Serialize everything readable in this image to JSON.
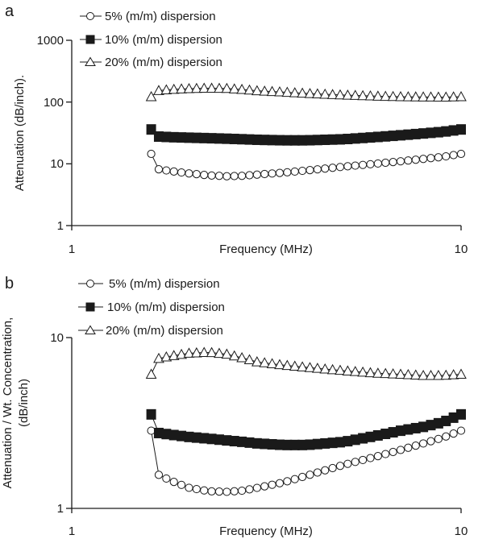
{
  "chart_data": [
    {
      "panel_label": "a",
      "type": "scatter",
      "xlabel": "Frequency (MHz)",
      "ylabel": "Attenuation (dB/inch).",
      "x_scale": "log",
      "y_scale": "log",
      "xlim": [
        1,
        10
      ],
      "ylim": [
        1,
        1000
      ],
      "x_ticks": [
        "1",
        "10"
      ],
      "y_ticks": [
        "1",
        "10",
        "100",
        "1000"
      ],
      "legend_position": "top-left",
      "series": [
        {
          "name": "5% (m/m) dispersion",
          "marker": "open-circle",
          "x": [
            1.6,
            1.8,
            2.0,
            2.25,
            2.5,
            2.75,
            3.0,
            3.5,
            4.0,
            5.0,
            6.0,
            7.0,
            8.0,
            9.0,
            10.0
          ],
          "y": [
            8.5,
            7.6,
            7.0,
            6.5,
            6.3,
            6.4,
            6.7,
            7.2,
            7.8,
            9.0,
            10.0,
            11.0,
            12.0,
            13.0,
            14.5
          ]
        },
        {
          "name": "10% (m/m) dispersion",
          "marker": "filled-square",
          "x": [
            1.6,
            1.8,
            2.0,
            2.25,
            2.5,
            2.75,
            3.0,
            3.5,
            4.0,
            5.0,
            6.0,
            7.0,
            8.0,
            9.0,
            10.0
          ],
          "y": [
            28,
            27,
            26.5,
            26,
            25.5,
            25,
            24.5,
            24,
            24,
            25,
            27,
            29,
            31,
            33,
            36
          ]
        },
        {
          "name": "20% (m/m) dispersion",
          "marker": "open-triangle",
          "x": [
            1.6,
            1.8,
            2.0,
            2.25,
            2.5,
            2.75,
            3.0,
            3.5,
            4.0,
            5.0,
            6.0,
            7.0,
            8.0,
            9.0,
            10.0
          ],
          "y": [
            150,
            160,
            165,
            168,
            166,
            160,
            152,
            145,
            138,
            130,
            125,
            122,
            121,
            120,
            122
          ]
        }
      ]
    },
    {
      "panel_label": "b",
      "type": "scatter",
      "xlabel": "Frequency (MHz)",
      "ylabel": "Attenuation / Wt. Concentration, (dB/inch)",
      "x_scale": "log",
      "y_scale": "log",
      "xlim": [
        1,
        10
      ],
      "ylim": [
        1,
        10
      ],
      "x_ticks": [
        "1",
        "10"
      ],
      "y_ticks": [
        "1",
        "10"
      ],
      "legend_position": "top-left",
      "series": [
        {
          "name": "5% (m/m) dispersion",
          "marker": "open-circle",
          "x": [
            1.6,
            1.8,
            2.0,
            2.25,
            2.5,
            2.75,
            3.0,
            3.5,
            4.0,
            5.0,
            6.0,
            7.0,
            8.0,
            9.0,
            10.0
          ],
          "y": [
            1.65,
            1.45,
            1.32,
            1.26,
            1.25,
            1.27,
            1.32,
            1.42,
            1.55,
            1.8,
            2.0,
            2.2,
            2.4,
            2.6,
            2.85
          ]
        },
        {
          "name": "10% (m/m) dispersion",
          "marker": "filled-square",
          "x": [
            1.6,
            1.8,
            2.0,
            2.25,
            2.5,
            2.75,
            3.0,
            3.5,
            4.0,
            5.0,
            6.0,
            7.0,
            8.0,
            9.0,
            10.0
          ],
          "y": [
            2.8,
            2.7,
            2.62,
            2.56,
            2.5,
            2.45,
            2.4,
            2.35,
            2.35,
            2.45,
            2.65,
            2.85,
            3.0,
            3.2,
            3.55
          ]
        },
        {
          "name": "20% (m/m) dispersion",
          "marker": "open-triangle",
          "x": [
            1.6,
            1.8,
            2.0,
            2.25,
            2.5,
            2.75,
            3.0,
            3.5,
            4.0,
            5.0,
            6.0,
            7.0,
            8.0,
            9.0,
            10.0
          ],
          "y": [
            7.4,
            7.8,
            8.1,
            8.2,
            8.0,
            7.6,
            7.2,
            6.9,
            6.7,
            6.4,
            6.2,
            6.1,
            6.0,
            6.0,
            6.1
          ]
        }
      ]
    }
  ]
}
